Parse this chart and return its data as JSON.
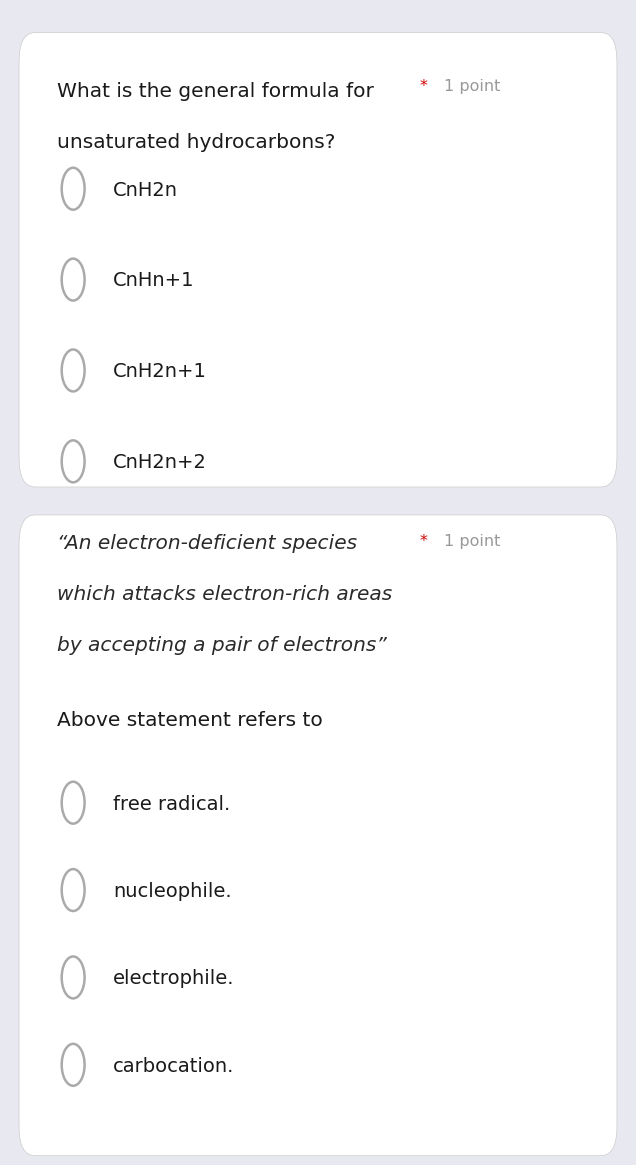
{
  "bg_color": "#e8e8f0",
  "card_color": "#ffffff",
  "card1_question_line1": "What is the general formula for",
  "card1_question_line2": "unsaturated hydrocarbons?",
  "card1_options": [
    "CnH2n",
    "CnHn+1",
    "CnH2n+1",
    "CnH2n+2"
  ],
  "card2_quote_line1": "“An electron-deficient species",
  "card2_quote_line2": "which attacks electron-rich areas",
  "card2_quote_line3": "by accepting a pair of electrons”",
  "card2_subquestion": "Above statement refers to",
  "card2_options": [
    "free radical.",
    "nucleophile.",
    "electrophile.",
    "carbocation."
  ],
  "point_label_star": "*",
  "point_label_text": "1 point",
  "point_star_color": "#cc0000",
  "point_text_color": "#999999",
  "question_fontsize": 14.5,
  "option_fontsize": 14.0,
  "point_fontsize": 11.5,
  "quote_fontsize": 14.5,
  "subq_fontsize": 14.5,
  "circle_color": "#aaaaaa",
  "circle_lw": 1.8,
  "text_color": "#1a1a1a",
  "italic_color": "#2a2a2a"
}
